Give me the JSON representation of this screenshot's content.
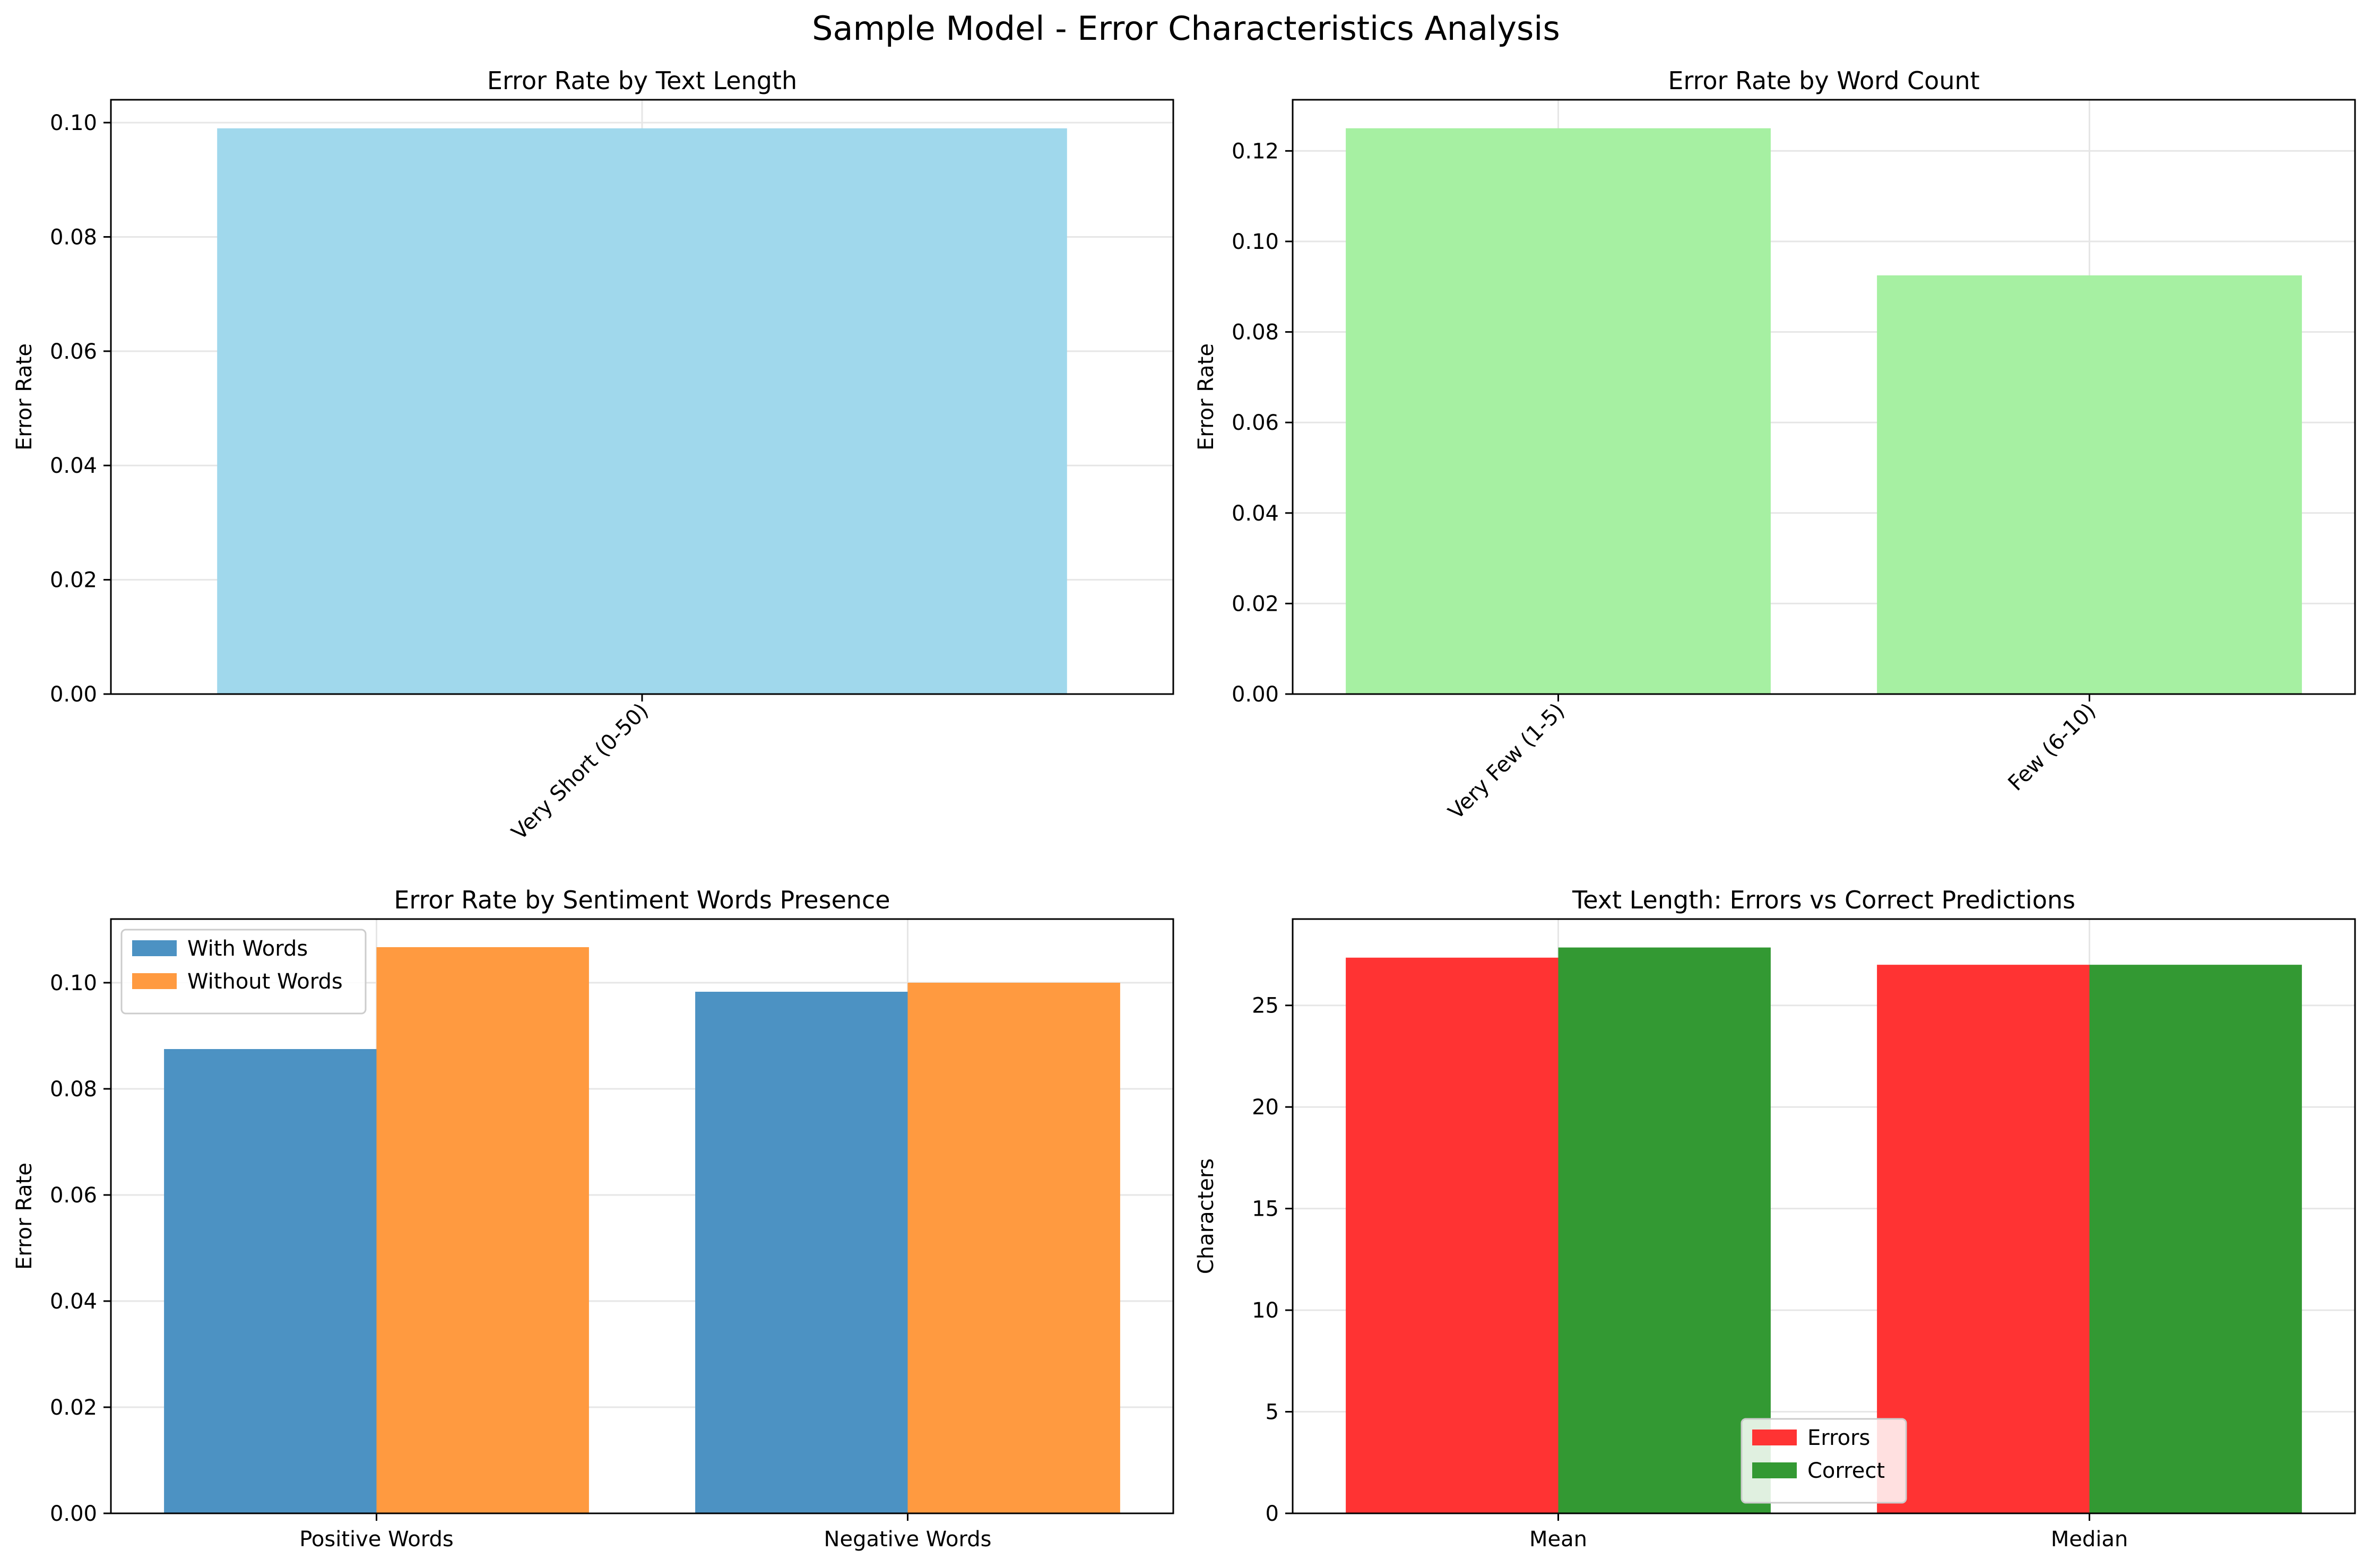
{
  "figure": {
    "suptitle": "Sample Model - Error Characteristics Analysis"
  },
  "chart_data": [
    {
      "type": "bar",
      "title": "Error Rate by Text Length",
      "xlabel": "",
      "ylabel": "Error Rate",
      "categories": [
        "Very Short (0-50)"
      ],
      "series": [
        {
          "values": [
            0.099
          ],
          "color": "#a0d8ec"
        }
      ],
      "ylim": [
        0,
        0.104
      ],
      "yticks": [
        "0.00",
        "0.02",
        "0.04",
        "0.06",
        "0.08",
        "0.10"
      ],
      "rotate_xticks": true,
      "grid": true
    },
    {
      "type": "bar",
      "title": "Error Rate by Word Count",
      "xlabel": "",
      "ylabel": "Error Rate",
      "categories": [
        "Very Few (1-5)",
        "Few (6-10)"
      ],
      "series": [
        {
          "values": [
            0.125,
            0.0925
          ],
          "color": "#a6f0a2"
        }
      ],
      "ylim": [
        0,
        0.1313
      ],
      "yticks": [
        "0.00",
        "0.02",
        "0.04",
        "0.06",
        "0.08",
        "0.10",
        "0.12"
      ],
      "rotate_xticks": true,
      "grid": true
    },
    {
      "type": "bar",
      "title": "Error Rate by Sentiment Words Presence",
      "xlabel": "",
      "ylabel": "Error Rate",
      "categories": [
        "Positive Words",
        "Negative Words"
      ],
      "series": [
        {
          "name": "With Words",
          "values": [
            0.0875,
            0.0983
          ],
          "color": "#4c92c3"
        },
        {
          "name": "Without Words",
          "values": [
            0.1067,
            0.1
          ],
          "color": "#ff9a40"
        }
      ],
      "ylim": [
        0,
        0.112
      ],
      "yticks": [
        "0.00",
        "0.02",
        "0.04",
        "0.06",
        "0.08",
        "0.10"
      ],
      "legend": "upper-left",
      "grid": true
    },
    {
      "type": "bar",
      "title": "Text Length: Errors vs Correct Predictions",
      "xlabel": "",
      "ylabel": "Characters",
      "categories": [
        "Mean",
        "Median"
      ],
      "series": [
        {
          "name": "Errors",
          "values": [
            27.35,
            27
          ],
          "color": "#ff3333"
        },
        {
          "name": "Correct",
          "values": [
            27.85,
            27
          ],
          "color": "#339933"
        }
      ],
      "ylim": [
        0,
        29.25
      ],
      "yticks": [
        "0",
        "5",
        "10",
        "15",
        "20",
        "25"
      ],
      "legend": "lower-center",
      "grid": true
    }
  ]
}
